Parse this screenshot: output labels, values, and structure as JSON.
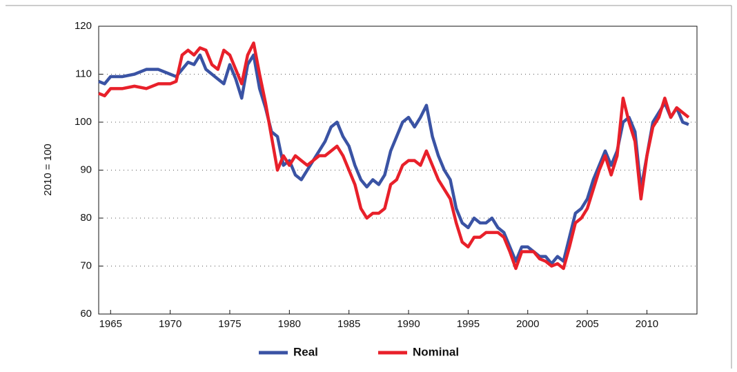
{
  "chart_data": {
    "type": "line",
    "y_label": "2010 = 100",
    "x": [
      1964,
      1964.5,
      1965,
      1966,
      1967,
      1968,
      1969,
      1970,
      1970.5,
      1971,
      1971.5,
      1972,
      1972.5,
      1973,
      1973.5,
      1974,
      1974.5,
      1975,
      1975.5,
      1976,
      1976.5,
      1977,
      1977.5,
      1978,
      1978.5,
      1979,
      1979.5,
      1980,
      1980.5,
      1981,
      1981.5,
      1982,
      1982.5,
      1983,
      1983.5,
      1984,
      1984.5,
      1985,
      1985.5,
      1986,
      1986.5,
      1987,
      1987.5,
      1988,
      1988.5,
      1989,
      1989.5,
      1990,
      1990.5,
      1991,
      1991.5,
      1992,
      1992.5,
      1993,
      1993.5,
      1994,
      1994.5,
      1995,
      1995.5,
      1996,
      1996.5,
      1997,
      1997.5,
      1998,
      1998.5,
      1999,
      1999.5,
      2000,
      2000.5,
      2001,
      2001.5,
      2002,
      2002.5,
      2003,
      2003.5,
      2004,
      2004.5,
      2005,
      2005.5,
      2006,
      2006.5,
      2007,
      2007.5,
      2008,
      2008.5,
      2009,
      2009.5,
      2010,
      2010.5,
      2011,
      2011.5,
      2012,
      2012.5,
      2013,
      2013.5
    ],
    "series": [
      {
        "name": "Real",
        "color": "#3a53a4",
        "values": [
          108.5,
          108,
          109.5,
          109.5,
          110,
          111,
          111,
          110,
          109.5,
          111,
          112.5,
          112,
          114,
          111,
          110,
          109,
          108,
          112,
          109,
          105,
          112,
          114,
          107,
          103,
          98,
          97,
          91,
          92,
          89,
          88,
          90,
          92,
          94,
          96,
          99,
          100,
          97,
          95,
          91,
          88,
          86.5,
          88,
          87,
          89,
          94,
          97,
          100,
          101,
          99,
          101,
          103.5,
          97,
          93,
          90,
          88,
          82,
          79,
          78,
          80,
          79,
          79,
          80,
          78,
          77,
          74,
          71,
          74,
          74,
          73,
          72,
          72,
          70.5,
          72,
          71,
          76,
          81,
          82,
          84,
          88,
          91,
          94,
          91,
          94,
          100,
          101,
          98,
          86,
          93,
          100,
          102,
          104,
          101,
          103,
          100,
          99.5
        ]
      },
      {
        "name": "Nominal",
        "color": "#e8202a",
        "values": [
          106,
          105.5,
          107,
          107,
          107.5,
          107,
          108,
          108,
          108.5,
          114,
          115,
          114,
          115.5,
          115,
          112,
          111,
          115,
          114,
          111,
          108,
          114,
          116.5,
          110,
          104,
          97,
          90,
          93,
          91,
          93,
          92,
          91,
          92,
          93,
          93,
          94,
          95,
          93,
          90,
          87,
          82,
          80,
          81,
          81,
          82,
          87,
          88,
          91,
          92,
          92,
          91,
          94,
          91,
          88,
          86,
          84,
          79,
          75,
          74,
          76,
          76,
          77,
          77,
          77,
          76,
          73,
          69.5,
          73,
          73,
          73,
          71.5,
          71,
          70,
          70.5,
          69.5,
          74,
          79,
          80,
          82,
          86,
          90,
          93,
          89,
          93,
          105,
          100,
          96,
          84,
          93,
          99,
          101,
          105,
          101,
          103,
          102,
          101
        ]
      }
    ],
    "xlim": [
      1964,
      2014.2
    ],
    "xticks": [
      1965,
      1970,
      1975,
      1980,
      1985,
      1990,
      1995,
      2000,
      2005,
      2010
    ],
    "ylim": [
      60,
      120
    ],
    "yticks": [
      60,
      70,
      80,
      90,
      100,
      110,
      120
    ],
    "grid": true,
    "legend": "bottom"
  }
}
